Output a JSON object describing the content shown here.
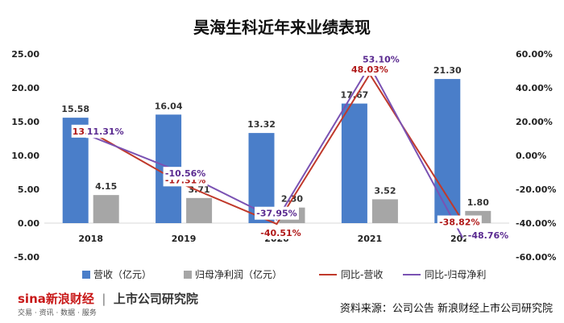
{
  "title": "昊海生科近年来业绩表现",
  "footer": {
    "logo": "sina新浪财经",
    "logo_tag": "交易 · 资讯 · 数据 · 服务",
    "brand": "上市公司研究院",
    "source": "资料来源：公司公告 新浪财经上市公司研究院"
  },
  "colors": {
    "revenue": "#4a7ec9",
    "profit": "#a6a6a6",
    "revenue_yoy": "#c0392b",
    "profit_yoy": "#7a52b3"
  },
  "chart_data": {
    "type": "bar",
    "categories": [
      "2018",
      "2019",
      "2020",
      "2021",
      "2022"
    ],
    "series": [
      {
        "name": "营收（亿元）",
        "type": "bar",
        "axis": "left",
        "values": [
          15.58,
          16.04,
          13.32,
          17.67,
          21.3
        ],
        "labels": [
          "15.58",
          "16.04",
          "13.32",
          "17.67",
          "21.30"
        ]
      },
      {
        "name": "归母净利润（亿元）",
        "type": "bar",
        "axis": "left",
        "values": [
          4.15,
          3.71,
          2.3,
          3.52,
          1.8
        ],
        "labels": [
          "4.15",
          "3.71",
          "2.30",
          "3.52",
          "1.80"
        ]
      },
      {
        "name": "同比-营收",
        "type": "line",
        "axis": "right",
        "values": [
          13.89,
          -17.31,
          -40.51,
          48.03,
          -38.82
        ],
        "labels": [
          "13.89%",
          "-17.31%",
          "-40.51%",
          "48.03%",
          "-38.82%"
        ]
      },
      {
        "name": "同比-归母净利",
        "type": "line",
        "axis": "right",
        "values": [
          11.31,
          -10.56,
          -37.95,
          53.1,
          -48.76
        ],
        "labels": [
          "11.31%",
          "-10.56%",
          "-37.95%",
          "53.10%",
          "-48.76%"
        ]
      }
    ],
    "left_axis": {
      "min": -5,
      "max": 25,
      "ticks": [
        "-5.00",
        "0.00",
        "5.00",
        "10.00",
        "15.00",
        "20.00",
        "25.00"
      ]
    },
    "right_axis": {
      "min": -60,
      "max": 60,
      "ticks": [
        "-60.00%",
        "-40.00%",
        "-20.00%",
        "0.00%",
        "20.00%",
        "40.00%",
        "60.00%"
      ]
    },
    "legend_position": "bottom",
    "grid": false
  }
}
